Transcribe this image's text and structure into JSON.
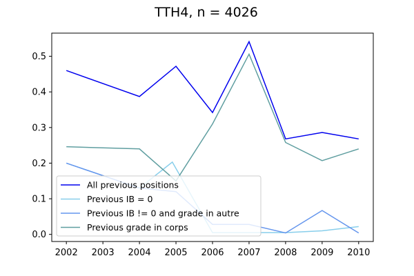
{
  "chart_data": {
    "type": "line",
    "title": "TTH4, n = 4026",
    "xlabel": "",
    "ylabel": "",
    "x_ticks": [
      2002,
      2003,
      2004,
      2005,
      2006,
      2007,
      2008,
      2009,
      2010
    ],
    "xlim": [
      2001.6,
      2010.4
    ],
    "ylim": [
      -0.02,
      0.565
    ],
    "y_ticks": [
      0.0,
      0.1,
      0.2,
      0.3,
      0.4,
      0.5
    ],
    "y_tick_labels": [
      "0.0",
      "0.1",
      "0.2",
      "0.3",
      "0.4",
      "0.5"
    ],
    "grid": false,
    "legend_position": "lower-left",
    "series": [
      {
        "name": "All previous positions",
        "color": "#0000ee",
        "x": [
          2002,
          2004,
          2005,
          2006,
          2007,
          2008,
          2009,
          2010
        ],
        "y": [
          0.46,
          0.387,
          0.472,
          0.342,
          0.541,
          0.268,
          0.286,
          0.268
        ]
      },
      {
        "name": "Previous IB = 0",
        "color": "#87ceeb",
        "x": [
          2002,
          2004,
          2004.9,
          2006,
          2007,
          2008,
          2009,
          2010
        ],
        "y": [
          0.2,
          0.13,
          0.203,
          0.005,
          0.005,
          0.005,
          0.01,
          0.022
        ]
      },
      {
        "name": "Previous IB != 0 and grade in autre",
        "color": "#6495ed",
        "x": [
          2002,
          2004,
          2005,
          2006,
          2007,
          2008,
          2009,
          2010
        ],
        "y": [
          0.2,
          0.13,
          0.12,
          0.028,
          0.028,
          0.004,
          0.067,
          0.004
        ]
      },
      {
        "name": "Previous grade in corps",
        "color": "#5f9ea0",
        "x": [
          2002,
          2004,
          2005,
          2006,
          2007,
          2008,
          2009,
          2010
        ],
        "y": [
          0.246,
          0.24,
          0.15,
          0.31,
          0.506,
          0.258,
          0.207,
          0.24
        ]
      }
    ]
  }
}
